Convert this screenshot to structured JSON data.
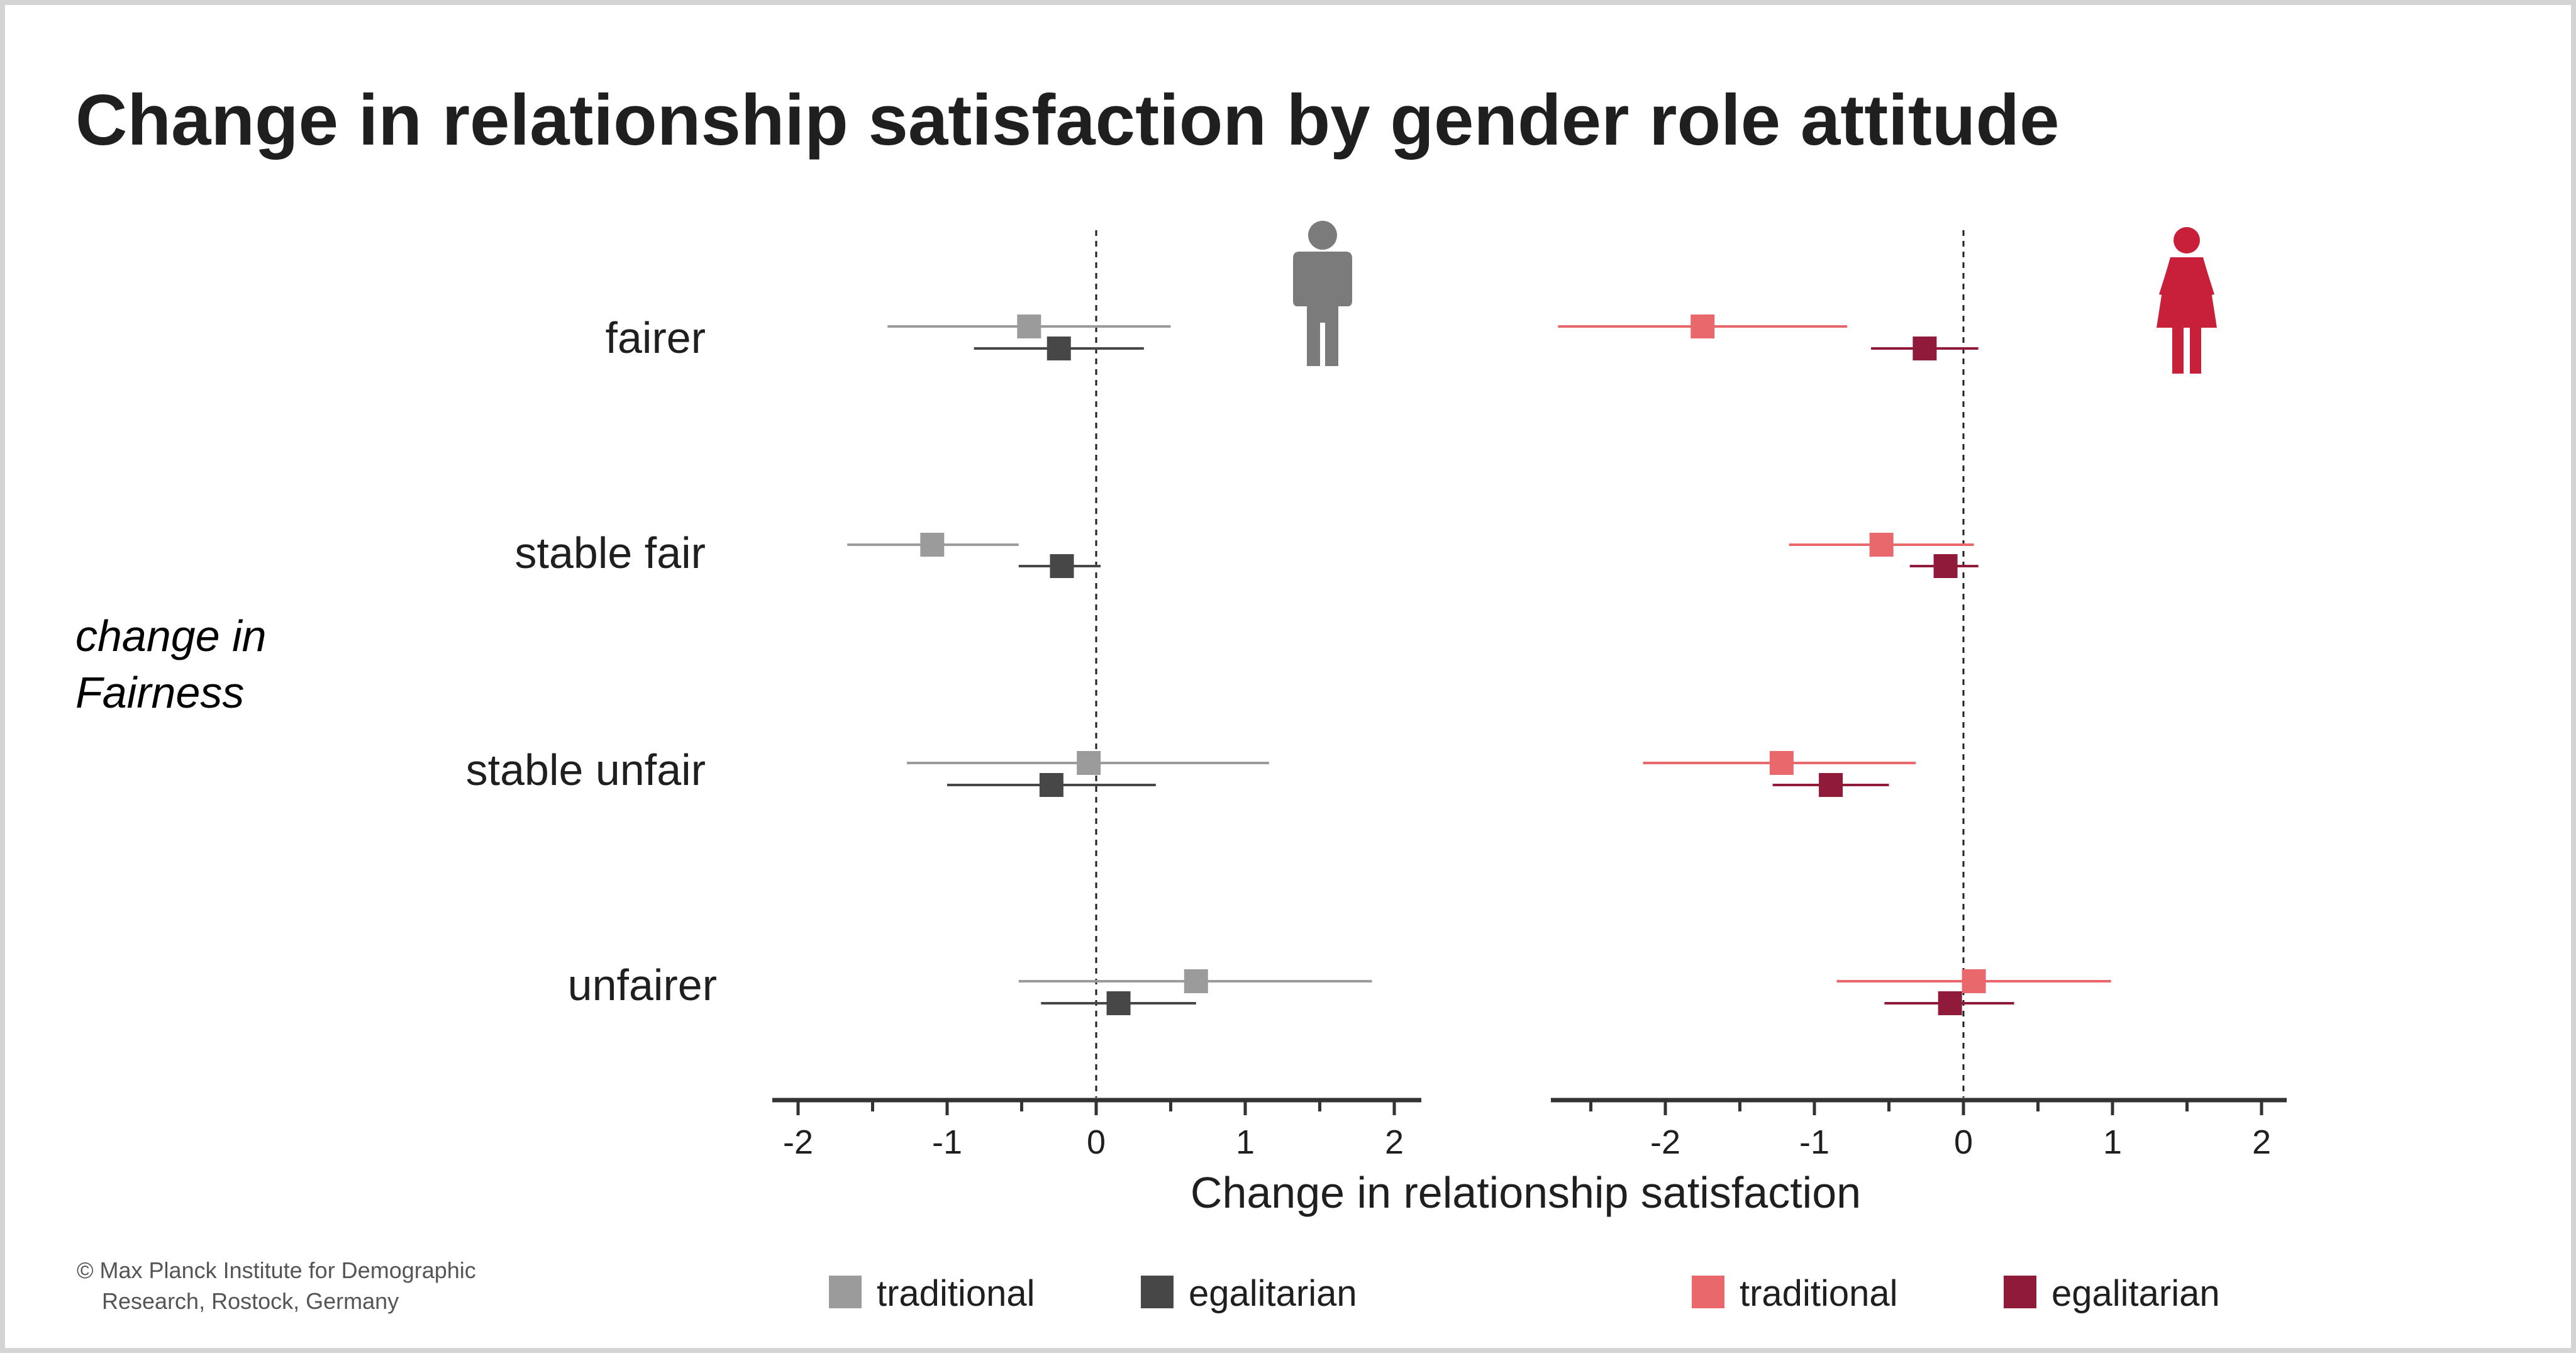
{
  "colors": {
    "men_traditional": "#9b9b9b",
    "men_egalitarian": "#474747",
    "women_traditional": "#e8686b",
    "women_egalitarian": "#8f1a3a",
    "men_icon": "#7b7b7c",
    "women_icon": "#c8203a",
    "axis": "#333333",
    "text": "#1f1f1f"
  },
  "icons": {
    "men": "man-icon",
    "women": "woman-icon"
  },
  "chart_data": {
    "type": "scatter",
    "subtype": "coefficient-plot",
    "title": "Change in relationship satisfaction by gender role attitude",
    "xlabel": "Change in relationship satisfaction",
    "ylabel": [
      "change in",
      "Fairness"
    ],
    "categories": [
      "fairer",
      "stable fair",
      "stable unfair",
      "unfairer"
    ],
    "ticks": [
      "-2",
      "-1",
      "0",
      "1",
      "2"
    ],
    "grid": false,
    "legend_position": "bottom",
    "panels": [
      {
        "name": "men",
        "xlim": [
          -2.15,
          2.15
        ],
        "series": [
          {
            "name": "traditional",
            "values": [
              -0.45,
              -1.1,
              -0.05,
              0.67
            ],
            "ci_low": [
              -1.4,
              -1.67,
              -1.27,
              -0.52
            ],
            "ci_high": [
              0.5,
              -0.52,
              1.16,
              1.85
            ]
          },
          {
            "name": "egalitarian",
            "values": [
              -0.25,
              -0.23,
              -0.3,
              0.15
            ],
            "ci_low": [
              -0.82,
              -0.52,
              -1.0,
              -0.37
            ],
            "ci_high": [
              0.32,
              0.03,
              0.4,
              0.67
            ]
          }
        ]
      },
      {
        "name": "women",
        "xlim": [
          -2.75,
          2.15
        ],
        "series": [
          {
            "name": "traditional",
            "values": [
              -1.75,
              -0.55,
              -1.22,
              0.07
            ],
            "ci_low": [
              -2.72,
              -1.17,
              -2.15,
              -0.85
            ],
            "ci_high": [
              -0.78,
              0.07,
              -0.32,
              0.99
            ]
          },
          {
            "name": "egalitarian",
            "values": [
              -0.26,
              -0.12,
              -0.89,
              -0.09
            ],
            "ci_low": [
              -0.62,
              -0.36,
              -1.28,
              -0.53
            ],
            "ci_high": [
              0.1,
              0.1,
              -0.5,
              0.34
            ]
          }
        ]
      }
    ]
  },
  "footer": {
    "credit_line1": "© Max Planck Institute for Demographic",
    "credit_line2": "Research, Rostock, Germany"
  }
}
